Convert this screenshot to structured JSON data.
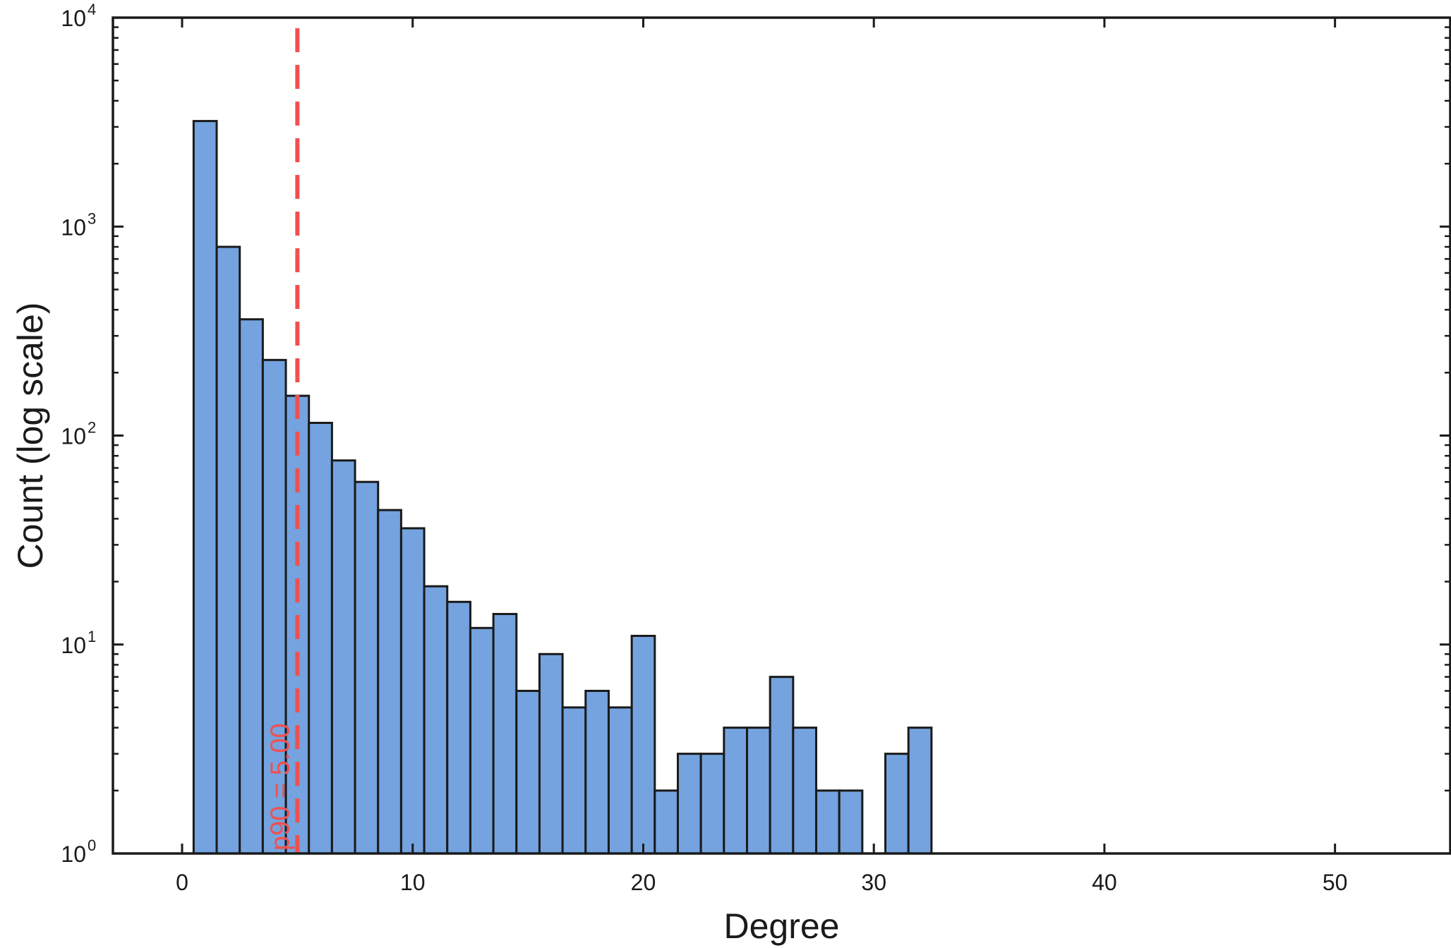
{
  "chart_data": {
    "type": "bar",
    "title": "",
    "xlabel": "Degree",
    "ylabel": "Count (log scale)",
    "yscale": "log",
    "xlim": [
      -3,
      55
    ],
    "ylim": [
      1,
      10000
    ],
    "xticks": [
      0,
      10,
      20,
      30,
      40,
      50
    ],
    "yticks": [
      {
        "value": 1,
        "base": "10",
        "exp": "0"
      },
      {
        "value": 10,
        "base": "10",
        "exp": "1"
      },
      {
        "value": 100,
        "base": "10",
        "exp": "2"
      },
      {
        "value": 1000,
        "base": "10",
        "exp": "3"
      },
      {
        "value": 10000,
        "base": "10",
        "exp": "4"
      }
    ],
    "bin_width": 1,
    "bins": [
      {
        "x": 1,
        "count": 3200
      },
      {
        "x": 2,
        "count": 800
      },
      {
        "x": 3,
        "count": 360
      },
      {
        "x": 4,
        "count": 230
      },
      {
        "x": 5,
        "count": 155
      },
      {
        "x": 6,
        "count": 115
      },
      {
        "x": 7,
        "count": 76
      },
      {
        "x": 8,
        "count": 60
      },
      {
        "x": 9,
        "count": 44
      },
      {
        "x": 10,
        "count": 36
      },
      {
        "x": 11,
        "count": 19
      },
      {
        "x": 12,
        "count": 16
      },
      {
        "x": 13,
        "count": 12
      },
      {
        "x": 14,
        "count": 14
      },
      {
        "x": 15,
        "count": 6
      },
      {
        "x": 16,
        "count": 9
      },
      {
        "x": 17,
        "count": 5
      },
      {
        "x": 18,
        "count": 6
      },
      {
        "x": 19,
        "count": 5
      },
      {
        "x": 20,
        "count": 11
      },
      {
        "x": 21,
        "count": 2
      },
      {
        "x": 22,
        "count": 3
      },
      {
        "x": 23,
        "count": 3
      },
      {
        "x": 24,
        "count": 4
      },
      {
        "x": 25,
        "count": 4
      },
      {
        "x": 26,
        "count": 7
      },
      {
        "x": 27,
        "count": 4
      },
      {
        "x": 28,
        "count": 2
      },
      {
        "x": 29,
        "count": 2
      },
      {
        "x": 31,
        "count": 3
      },
      {
        "x": 32,
        "count": 4
      }
    ],
    "reference_line": {
      "x": 5.0,
      "label": "p90 = 5.00",
      "color": "#f05050"
    },
    "bar_color": "#74a3df",
    "edge_color": "#1a1a1a",
    "grid": false,
    "legend": "none"
  }
}
